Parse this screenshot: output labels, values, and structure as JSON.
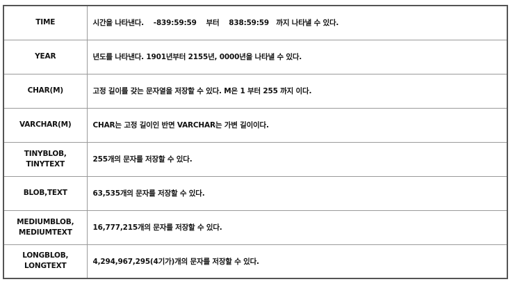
{
  "table": {
    "rows": [
      {
        "type_lines": [
          "TIME"
        ],
        "description": "시간을 나타낸다.    -839:59:59    부터    838:59:59   까지 나타낼 수 있다."
      },
      {
        "type_lines": [
          "YEAR"
        ],
        "description": "년도를 나타낸다. 1901년부터 2155년, 0000년을 나타낼 수 있다."
      },
      {
        "type_lines": [
          "CHAR(M)"
        ],
        "description": "고정 길이를 갖는 문자열을 저장할 수 있다. M은 1 부터 255 까지 이다."
      },
      {
        "type_lines": [
          "VARCHAR(M)"
        ],
        "description": "CHAR는 고정 길이인 반면 VARCHAR는 가변 길이이다."
      },
      {
        "type_lines": [
          "TINYBLOB,",
          "TINYTEXT"
        ],
        "description": "255개의 문자를 저장할 수 있다."
      },
      {
        "type_lines": [
          "BLOB,TEXT"
        ],
        "description": "63,535개의 문자를 저장할 수 있다."
      },
      {
        "type_lines": [
          "MEDIUMBLOB,",
          "MEDIUMTEXT"
        ],
        "description": "16,777,215개의 문자를 저장할 수 있다."
      },
      {
        "type_lines": [
          "LONGBLOB,",
          "LONGTEXT"
        ],
        "description": "4,294,967,295(4기가)개의 문자를 저장할 수 있다."
      }
    ]
  }
}
